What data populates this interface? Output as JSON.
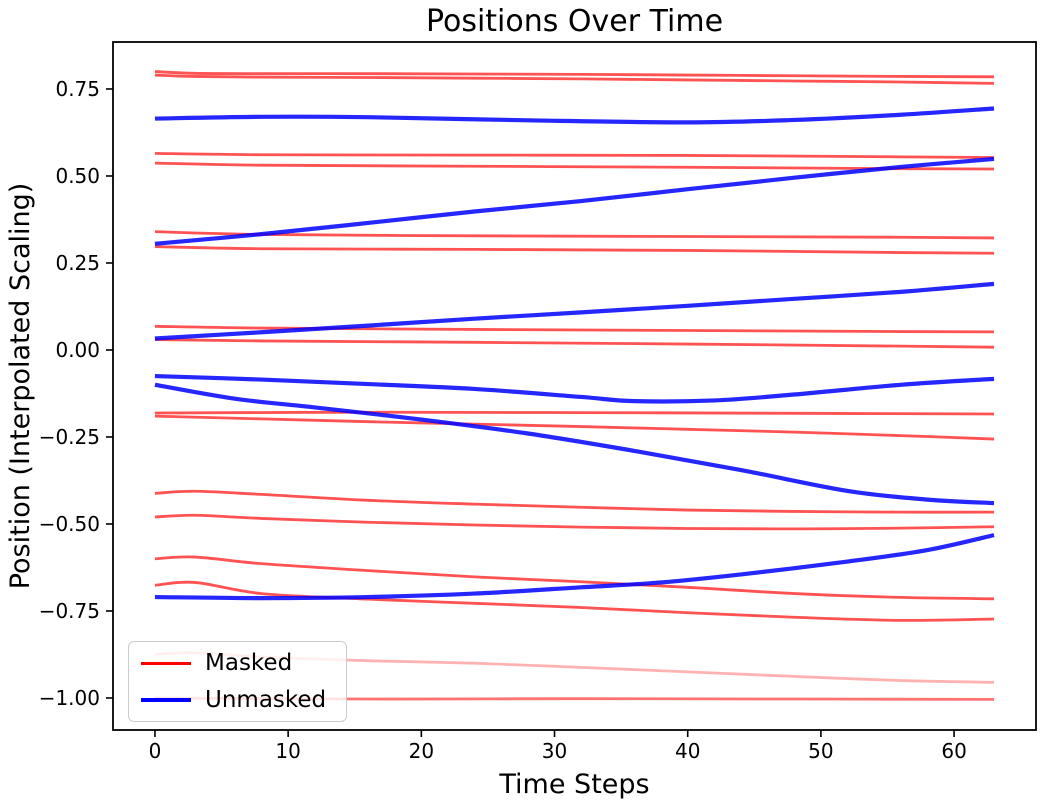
{
  "figure": {
    "title": "Positions Over Time",
    "xlabel": "Time Steps",
    "ylabel": "Position (Interpolated Scaling)"
  },
  "legend": {
    "items": [
      {
        "label": "Masked",
        "color": "#ff0000"
      },
      {
        "label": "Unmasked",
        "color": "#0000ff"
      }
    ]
  },
  "chart_data": {
    "type": "line",
    "title": "Positions Over Time",
    "xlabel": "Time Steps",
    "ylabel": "Position (Interpolated Scaling)",
    "xlim": [
      -3.15,
      66.15
    ],
    "ylim": [
      -1.092,
      0.885
    ],
    "grid": false,
    "legend_position": "lower left",
    "xticks": [
      {
        "v": 0,
        "label": "0"
      },
      {
        "v": 10,
        "label": "10"
      },
      {
        "v": 20,
        "label": "20"
      },
      {
        "v": 30,
        "label": "30"
      },
      {
        "v": 40,
        "label": "40"
      },
      {
        "v": 50,
        "label": "50"
      },
      {
        "v": 60,
        "label": "60"
      }
    ],
    "yticks": [
      {
        "v": 0.75,
        "label": "0.75"
      },
      {
        "v": 0.5,
        "label": "0.50"
      },
      {
        "v": 0.25,
        "label": "0.25"
      },
      {
        "v": 0.0,
        "label": "0.00"
      },
      {
        "v": -0.25,
        "label": "−0.25"
      },
      {
        "v": -0.5,
        "label": "−0.50"
      },
      {
        "v": -0.75,
        "label": "−0.75"
      },
      {
        "v": -1.0,
        "label": "−1.00"
      }
    ],
    "series": [
      {
        "name": "masked-01",
        "group": "Masked",
        "color": "#ff0000",
        "alpha": 0.68,
        "width": 2.8,
        "points": [
          [
            0,
            0.8
          ],
          [
            3,
            0.795
          ],
          [
            8,
            0.794
          ],
          [
            16,
            0.794
          ],
          [
            24,
            0.793
          ],
          [
            32,
            0.792
          ],
          [
            40,
            0.79
          ],
          [
            48,
            0.788
          ],
          [
            56,
            0.786
          ],
          [
            63,
            0.785
          ]
        ]
      },
      {
        "name": "masked-02",
        "group": "Masked",
        "color": "#ff0000",
        "alpha": 0.68,
        "width": 2.8,
        "points": [
          [
            0,
            0.79
          ],
          [
            3,
            0.786
          ],
          [
            8,
            0.784
          ],
          [
            16,
            0.783
          ],
          [
            24,
            0.781
          ],
          [
            32,
            0.779
          ],
          [
            40,
            0.776
          ],
          [
            48,
            0.773
          ],
          [
            56,
            0.77
          ],
          [
            63,
            0.766
          ]
        ]
      },
      {
        "name": "masked-03",
        "group": "Masked",
        "color": "#ff0000",
        "alpha": 0.68,
        "width": 2.8,
        "points": [
          [
            0,
            0.565
          ],
          [
            8,
            0.561
          ],
          [
            24,
            0.56
          ],
          [
            40,
            0.559
          ],
          [
            56,
            0.555
          ],
          [
            63,
            0.553
          ]
        ]
      },
      {
        "name": "masked-04",
        "group": "Masked",
        "color": "#ff0000",
        "alpha": 0.68,
        "width": 2.8,
        "points": [
          [
            0,
            0.537
          ],
          [
            8,
            0.531
          ],
          [
            24,
            0.528
          ],
          [
            40,
            0.525
          ],
          [
            56,
            0.521
          ],
          [
            63,
            0.52
          ]
        ]
      },
      {
        "name": "masked-05",
        "group": "Masked",
        "color": "#ff0000",
        "alpha": 0.68,
        "width": 2.8,
        "points": [
          [
            0,
            0.34
          ],
          [
            8,
            0.332
          ],
          [
            24,
            0.328
          ],
          [
            40,
            0.326
          ],
          [
            56,
            0.324
          ],
          [
            63,
            0.322
          ]
        ]
      },
      {
        "name": "masked-06",
        "group": "Masked",
        "color": "#ff0000",
        "alpha": 0.68,
        "width": 2.8,
        "points": [
          [
            0,
            0.297
          ],
          [
            8,
            0.291
          ],
          [
            24,
            0.289
          ],
          [
            40,
            0.286
          ],
          [
            56,
            0.28
          ],
          [
            63,
            0.278
          ]
        ]
      },
      {
        "name": "masked-07",
        "group": "Masked",
        "color": "#ff0000",
        "alpha": 0.68,
        "width": 2.8,
        "points": [
          [
            0,
            0.068
          ],
          [
            8,
            0.063
          ],
          [
            24,
            0.059
          ],
          [
            40,
            0.056
          ],
          [
            56,
            0.053
          ],
          [
            63,
            0.052
          ]
        ]
      },
      {
        "name": "masked-08",
        "group": "Masked",
        "color": "#ff0000",
        "alpha": 0.68,
        "width": 2.8,
        "points": [
          [
            0,
            0.03
          ],
          [
            8,
            0.026
          ],
          [
            24,
            0.022
          ],
          [
            40,
            0.017
          ],
          [
            56,
            0.011
          ],
          [
            63,
            0.008
          ]
        ]
      },
      {
        "name": "masked-09",
        "group": "Masked",
        "color": "#ff0000",
        "alpha": 0.68,
        "width": 2.8,
        "points": [
          [
            0,
            -0.181
          ],
          [
            16,
            -0.179
          ],
          [
            32,
            -0.18
          ],
          [
            48,
            -0.182
          ],
          [
            63,
            -0.184
          ]
        ]
      },
      {
        "name": "masked-10",
        "group": "Masked",
        "color": "#ff0000",
        "alpha": 0.68,
        "width": 2.8,
        "points": [
          [
            0,
            -0.19
          ],
          [
            8,
            -0.198
          ],
          [
            16,
            -0.206
          ],
          [
            24,
            -0.213
          ],
          [
            32,
            -0.22
          ],
          [
            40,
            -0.228
          ],
          [
            48,
            -0.236
          ],
          [
            56,
            -0.246
          ],
          [
            63,
            -0.256
          ]
        ]
      },
      {
        "name": "masked-11",
        "group": "Masked",
        "color": "#ff0000",
        "alpha": 0.68,
        "width": 2.8,
        "points": [
          [
            0,
            -0.412
          ],
          [
            3,
            -0.406
          ],
          [
            8,
            -0.415
          ],
          [
            16,
            -0.432
          ],
          [
            24,
            -0.443
          ],
          [
            32,
            -0.452
          ],
          [
            40,
            -0.46
          ],
          [
            48,
            -0.464
          ],
          [
            56,
            -0.466
          ],
          [
            63,
            -0.466
          ]
        ]
      },
      {
        "name": "masked-12",
        "group": "Masked",
        "color": "#ff0000",
        "alpha": 0.68,
        "width": 2.8,
        "points": [
          [
            0,
            -0.48
          ],
          [
            3,
            -0.475
          ],
          [
            8,
            -0.484
          ],
          [
            16,
            -0.495
          ],
          [
            24,
            -0.503
          ],
          [
            32,
            -0.509
          ],
          [
            40,
            -0.513
          ],
          [
            48,
            -0.514
          ],
          [
            56,
            -0.512
          ],
          [
            63,
            -0.508
          ]
        ]
      },
      {
        "name": "masked-13",
        "group": "Masked",
        "color": "#ff0000",
        "alpha": 0.68,
        "width": 2.8,
        "points": [
          [
            0,
            -0.6
          ],
          [
            3,
            -0.595
          ],
          [
            8,
            -0.614
          ],
          [
            16,
            -0.634
          ],
          [
            24,
            -0.652
          ],
          [
            32,
            -0.666
          ],
          [
            40,
            -0.682
          ],
          [
            48,
            -0.7
          ],
          [
            56,
            -0.711
          ],
          [
            63,
            -0.715
          ]
        ]
      },
      {
        "name": "masked-14",
        "group": "Masked",
        "color": "#ff0000",
        "alpha": 0.68,
        "width": 2.8,
        "points": [
          [
            0,
            -0.676
          ],
          [
            3,
            -0.668
          ],
          [
            8,
            -0.7
          ],
          [
            16,
            -0.716
          ],
          [
            24,
            -0.728
          ],
          [
            32,
            -0.74
          ],
          [
            40,
            -0.755
          ],
          [
            48,
            -0.768
          ],
          [
            56,
            -0.777
          ],
          [
            63,
            -0.773
          ]
        ]
      },
      {
        "name": "masked-15",
        "group": "Masked",
        "color": "#ff0000",
        "alpha": 0.3,
        "width": 2.8,
        "points": [
          [
            0,
            -0.875
          ],
          [
            3,
            -0.87
          ],
          [
            8,
            -0.882
          ],
          [
            16,
            -0.893
          ],
          [
            24,
            -0.9
          ],
          [
            32,
            -0.912
          ],
          [
            40,
            -0.925
          ],
          [
            48,
            -0.938
          ],
          [
            56,
            -0.95
          ],
          [
            63,
            -0.955
          ]
        ]
      },
      {
        "name": "masked-16",
        "group": "Masked",
        "color": "#ff0000",
        "alpha": 0.55,
        "width": 2.8,
        "points": [
          [
            0,
            -1.0
          ],
          [
            16,
            -1.003
          ],
          [
            32,
            -1.002
          ],
          [
            48,
            -1.003
          ],
          [
            63,
            -1.004
          ]
        ]
      },
      {
        "name": "unmasked-1",
        "group": "Unmasked",
        "color": "#0000ff",
        "alpha": 0.85,
        "width": 4.2,
        "points": [
          [
            0,
            0.665
          ],
          [
            8,
            0.67
          ],
          [
            16,
            0.669
          ],
          [
            28,
            0.66
          ],
          [
            40,
            0.654
          ],
          [
            48,
            0.661
          ],
          [
            56,
            0.676
          ],
          [
            63,
            0.694
          ]
        ]
      },
      {
        "name": "unmasked-2",
        "group": "Unmasked",
        "color": "#0000ff",
        "alpha": 0.85,
        "width": 4.2,
        "points": [
          [
            0,
            0.305
          ],
          [
            8,
            0.333
          ],
          [
            16,
            0.365
          ],
          [
            24,
            0.398
          ],
          [
            32,
            0.428
          ],
          [
            40,
            0.462
          ],
          [
            48,
            0.495
          ],
          [
            56,
            0.526
          ],
          [
            63,
            0.549
          ]
        ]
      },
      {
        "name": "unmasked-3",
        "group": "Unmasked",
        "color": "#0000ff",
        "alpha": 0.85,
        "width": 4.2,
        "points": [
          [
            0,
            0.033
          ],
          [
            8,
            0.051
          ],
          [
            16,
            0.07
          ],
          [
            24,
            0.09
          ],
          [
            32,
            0.108
          ],
          [
            40,
            0.127
          ],
          [
            48,
            0.147
          ],
          [
            56,
            0.167
          ],
          [
            63,
            0.19
          ]
        ]
      },
      {
        "name": "unmasked-4",
        "group": "Unmasked",
        "color": "#0000ff",
        "alpha": 0.85,
        "width": 4.2,
        "points": [
          [
            0,
            -0.075
          ],
          [
            8,
            -0.085
          ],
          [
            16,
            -0.098
          ],
          [
            24,
            -0.112
          ],
          [
            32,
            -0.135
          ],
          [
            36,
            -0.147
          ],
          [
            42,
            -0.145
          ],
          [
            48,
            -0.128
          ],
          [
            56,
            -0.1
          ],
          [
            63,
            -0.083
          ]
        ]
      },
      {
        "name": "unmasked-5",
        "group": "Unmasked",
        "color": "#0000ff",
        "alpha": 0.85,
        "width": 4.2,
        "points": [
          [
            0,
            -0.1
          ],
          [
            6,
            -0.14
          ],
          [
            12,
            -0.165
          ],
          [
            20,
            -0.2
          ],
          [
            28,
            -0.24
          ],
          [
            36,
            -0.29
          ],
          [
            44,
            -0.345
          ],
          [
            52,
            -0.405
          ],
          [
            58,
            -0.43
          ],
          [
            63,
            -0.44
          ]
        ]
      },
      {
        "name": "unmasked-6",
        "group": "Unmasked",
        "color": "#0000ff",
        "alpha": 0.85,
        "width": 4.2,
        "points": [
          [
            0,
            -0.71
          ],
          [
            8,
            -0.713
          ],
          [
            16,
            -0.71
          ],
          [
            24,
            -0.7
          ],
          [
            32,
            -0.682
          ],
          [
            38,
            -0.668
          ],
          [
            44,
            -0.645
          ],
          [
            52,
            -0.608
          ],
          [
            58,
            -0.575
          ],
          [
            63,
            -0.532
          ]
        ]
      }
    ]
  }
}
